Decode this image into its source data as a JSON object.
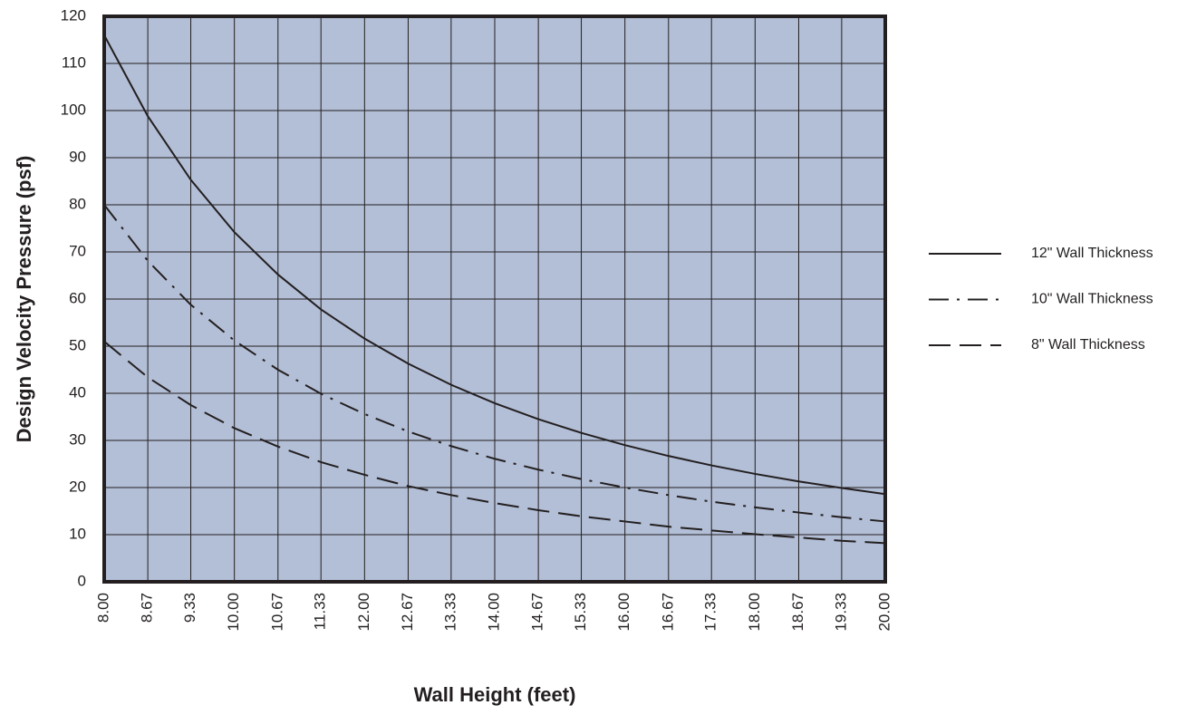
{
  "chart_data": {
    "type": "line",
    "xlabel": "Wall Height (feet)",
    "ylabel": "Design Velocity Pressure (psf)",
    "x": [
      8,
      8.67,
      9.33,
      10,
      10.67,
      11.33,
      12,
      12.67,
      13.33,
      14,
      14.67,
      15.33,
      16,
      16.67,
      17.33,
      18,
      18.67,
      19.33,
      20
    ],
    "series": [
      {
        "name": "12\" Wall Thickness",
        "color": "#231f20",
        "dash": "solid",
        "values": [
          116,
          98.8,
          85.3,
          74.2,
          65.2,
          57.8,
          51.6,
          46.3,
          41.8,
          37.9,
          34.5,
          31.6,
          29,
          26.7,
          24.7,
          22.9,
          21.3,
          19.9,
          18.6
        ]
      },
      {
        "name": "10\" Wall Thickness",
        "color": "#231f20",
        "dash": "dashdot",
        "values": [
          80,
          68.1,
          58.8,
          51.2,
          45,
          39.9,
          35.6,
          31.9,
          28.8,
          26.1,
          23.8,
          21.8,
          20,
          18.4,
          17,
          15.8,
          14.7,
          13.7,
          12.8
        ]
      },
      {
        "name": "8\" Wall Thickness",
        "color": "#231f20",
        "dash": "dashed",
        "values": [
          51,
          43.4,
          37.5,
          32.6,
          28.7,
          25.4,
          22.7,
          20.3,
          18.4,
          16.7,
          15.2,
          13.9,
          12.8,
          11.7,
          10.9,
          10.1,
          9.4,
          8.7,
          8.2
        ]
      }
    ],
    "xlim": [
      8,
      20
    ],
    "xticks": [
      {
        "value": 8,
        "label": "8.00"
      },
      {
        "value": 8.67,
        "label": "8.67"
      },
      {
        "value": 9.33,
        "label": "9.33"
      },
      {
        "value": 10,
        "label": "10.00"
      },
      {
        "value": 10.67,
        "label": "10.67"
      },
      {
        "value": 11.33,
        "label": "11.33"
      },
      {
        "value": 12,
        "label": "12.00"
      },
      {
        "value": 12.67,
        "label": "12.67"
      },
      {
        "value": 13.33,
        "label": "13.33"
      },
      {
        "value": 14,
        "label": "14.00"
      },
      {
        "value": 14.67,
        "label": "14.67"
      },
      {
        "value": 15.33,
        "label": "15.33"
      },
      {
        "value": 16,
        "label": "16.00"
      },
      {
        "value": 16.67,
        "label": "16.67"
      },
      {
        "value": 17.33,
        "label": "17.33"
      },
      {
        "value": 18,
        "label": "18.00"
      },
      {
        "value": 18.67,
        "label": "18.67"
      },
      {
        "value": 19.33,
        "label": "19.33"
      },
      {
        "value": 20,
        "label": "20.00"
      }
    ],
    "ylim": [
      0,
      120
    ],
    "yticks": [
      0,
      10,
      20,
      30,
      40,
      50,
      60,
      70,
      80,
      90,
      100,
      110,
      120
    ],
    "grid": true,
    "plot_color": "#b3bfd6",
    "legend": "right"
  }
}
